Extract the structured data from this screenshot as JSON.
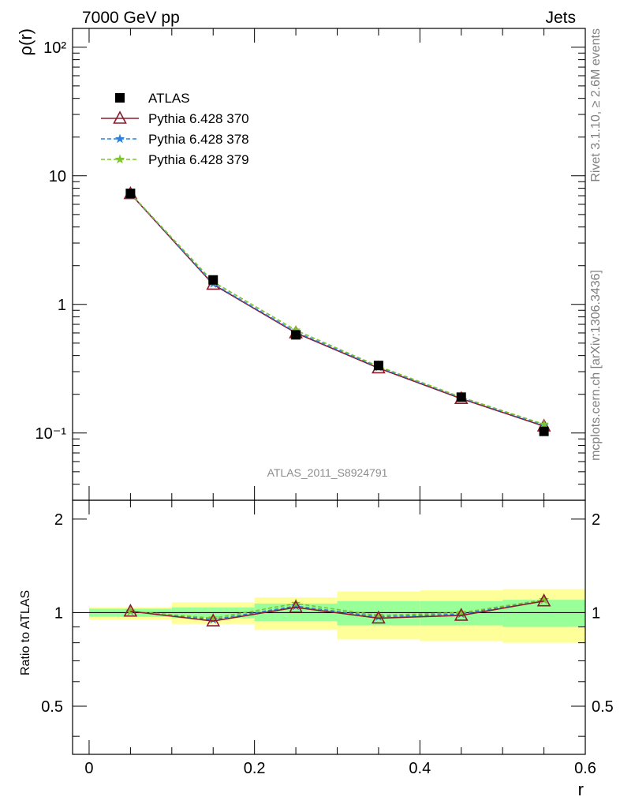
{
  "header": {
    "left": "7000 GeV pp",
    "right": "Jets"
  },
  "side_labels": {
    "rivet": "Rivet 3.1.10, ≥ 2.6M events",
    "mcplots": "mcplots.cern.ch [arXiv:1306.3436]"
  },
  "watermark": "ATLAS_2011_S8924791",
  "legend": [
    {
      "label": "ATLAS",
      "marker": "filled-square",
      "color": "#000000"
    },
    {
      "label": "Pythia 6.428 370",
      "marker": "open-triangle",
      "color": "#8b1a2a"
    },
    {
      "label": "Pythia 6.428 378",
      "marker": "star",
      "color": "#2e7fd8"
    },
    {
      "label": "Pythia 6.428 379",
      "marker": "star",
      "color": "#7fc32e"
    }
  ],
  "chart_data": [
    {
      "type": "line",
      "ylabel": "ρ(r)",
      "xlabel": "",
      "xlim": [
        -0.02,
        0.6
      ],
      "ylim": [
        0.03,
        140
      ],
      "yscale": "log",
      "y_tick_labels": [
        "10⁻¹",
        "1",
        "10",
        "10²"
      ],
      "x": [
        0.05,
        0.15,
        0.25,
        0.35,
        0.45,
        0.55
      ],
      "series": [
        {
          "name": "ATLAS",
          "values": [
            7.3,
            1.55,
            0.58,
            0.335,
            0.19,
            0.103
          ]
        },
        {
          "name": "Pythia 6.428 370",
          "values": [
            7.25,
            1.43,
            0.6,
            0.32,
            0.185,
            0.113
          ]
        },
        {
          "name": "Pythia 6.428 378",
          "values": [
            7.3,
            1.45,
            0.61,
            0.325,
            0.188,
            0.115
          ]
        },
        {
          "name": "Pythia 6.428 379",
          "values": [
            7.3,
            1.5,
            0.63,
            0.33,
            0.19,
            0.117
          ]
        }
      ]
    },
    {
      "type": "line",
      "ylabel": "Ratio to ATLAS",
      "xlabel": "r",
      "xlim": [
        -0.02,
        0.6
      ],
      "ylim": [
        0.35,
        2.3
      ],
      "x_tick_labels": [
        "0",
        "0.2",
        "0.4",
        "0.6"
      ],
      "y_tick_labels": [
        "0.5",
        "1",
        "2"
      ],
      "x": [
        0.05,
        0.15,
        0.25,
        0.35,
        0.45,
        0.55
      ],
      "bin_edges": [
        0.0,
        0.1,
        0.2,
        0.3,
        0.4,
        0.5,
        0.6
      ],
      "band_inner": [
        [
          0.97,
          1.03
        ],
        [
          0.96,
          1.04
        ],
        [
          0.94,
          1.07
        ],
        [
          0.91,
          1.09
        ],
        [
          0.91,
          1.09
        ],
        [
          0.9,
          1.1
        ]
      ],
      "band_outer": [
        [
          0.95,
          1.04
        ],
        [
          0.92,
          1.08
        ],
        [
          0.88,
          1.12
        ],
        [
          0.82,
          1.17
        ],
        [
          0.81,
          1.18
        ],
        [
          0.8,
          1.19
        ]
      ],
      "series": [
        {
          "name": "Pythia 6.428 370",
          "values": [
            1.01,
            0.94,
            1.04,
            0.96,
            0.98,
            1.09
          ]
        },
        {
          "name": "Pythia 6.428 378",
          "values": [
            1.01,
            0.95,
            1.05,
            0.97,
            0.99,
            1.1
          ]
        },
        {
          "name": "Pythia 6.428 379",
          "values": [
            1.01,
            0.96,
            1.07,
            0.98,
            1.0,
            1.1
          ]
        }
      ]
    }
  ]
}
